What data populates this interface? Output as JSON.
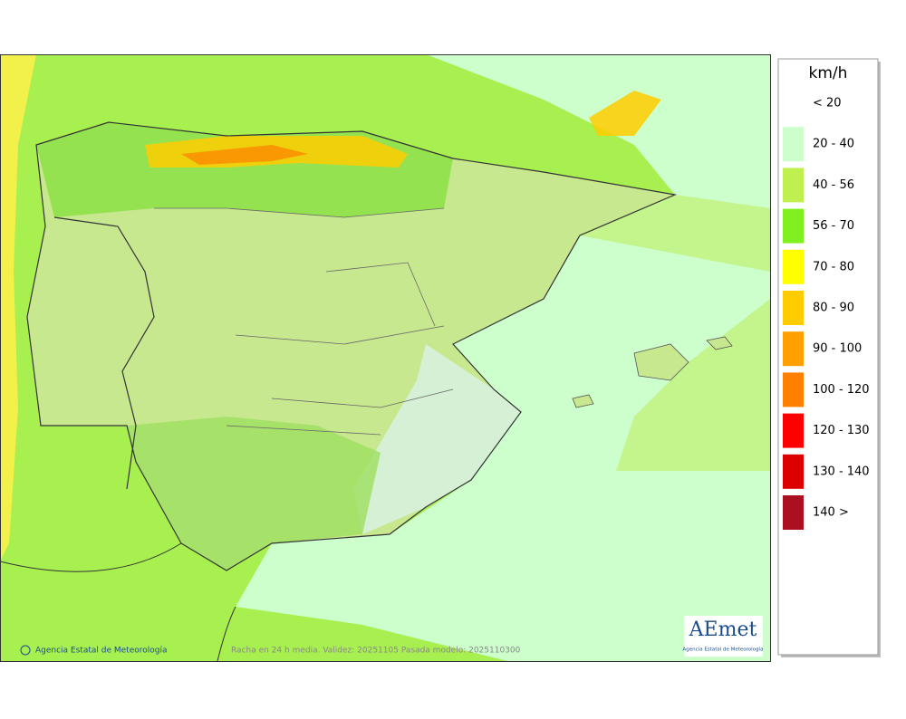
{
  "map": {
    "legend": {
      "title": "km/h",
      "items": [
        {
          "label": "< 20",
          "color": null
        },
        {
          "label": "20 - 40",
          "color": "#ccffcc"
        },
        {
          "label": "40 - 56",
          "color": "#c0f050"
        },
        {
          "label": "56 - 70",
          "color": "#80f020"
        },
        {
          "label": "70 - 80",
          "color": "#ffff00"
        },
        {
          "label": "80 - 90",
          "color": "#ffcc00"
        },
        {
          "label": "90 - 100",
          "color": "#ffa000"
        },
        {
          "label": "100 - 120",
          "color": "#ff8000"
        },
        {
          "label": "120 - 130",
          "color": "#ff0000"
        },
        {
          "label": "130 - 140",
          "color": "#dd0000"
        },
        {
          "label": "140 >",
          "color": "#aa1020"
        }
      ]
    },
    "credit": "Agencia Estatal de Meteorología",
    "caption": "Racha en 24 h media. Validez: 20251105 Pasada modelo: 2025110300",
    "logo": {
      "name": "AEmet",
      "subtitle": "Agencia Estatal de Meteorología"
    }
  }
}
